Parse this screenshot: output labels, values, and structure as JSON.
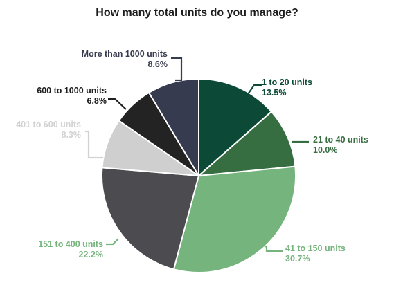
{
  "chart_data": {
    "type": "pie",
    "title": "How many total units do you manage?",
    "start_angle_deg": 0,
    "direction": "clockwise",
    "slices": [
      {
        "label": "1 to 20 units",
        "value": 13.5,
        "value_label": "13.5%",
        "color": "#0c4a37",
        "label_color": "#0c4a37"
      },
      {
        "label": "21 to 40 units",
        "value": 10.0,
        "value_label": "10.0%",
        "color": "#376e41",
        "label_color": "#376e41"
      },
      {
        "label": "41 to 150 units",
        "value": 30.7,
        "value_label": "30.7%",
        "color": "#75b47c",
        "label_color": "#75b47c"
      },
      {
        "label": "151 to 400 units",
        "value": 22.2,
        "value_label": "22.2%",
        "color": "#4c4b4f",
        "label_color": "#75b47c"
      },
      {
        "label": "401 to 600 units",
        "value": 8.3,
        "value_label": "8.3%",
        "color": "#cfcfcf",
        "label_color": "#d2d2d2"
      },
      {
        "label": "600 to 1000 units",
        "value": 6.8,
        "value_label": "6.8%",
        "color": "#232323",
        "label_color": "#1f1f1f"
      },
      {
        "label": "More than 1000 units",
        "value": 8.6,
        "value_label": "8.6%",
        "color": "#373b4f",
        "label_color": "#373b4f"
      }
    ]
  }
}
